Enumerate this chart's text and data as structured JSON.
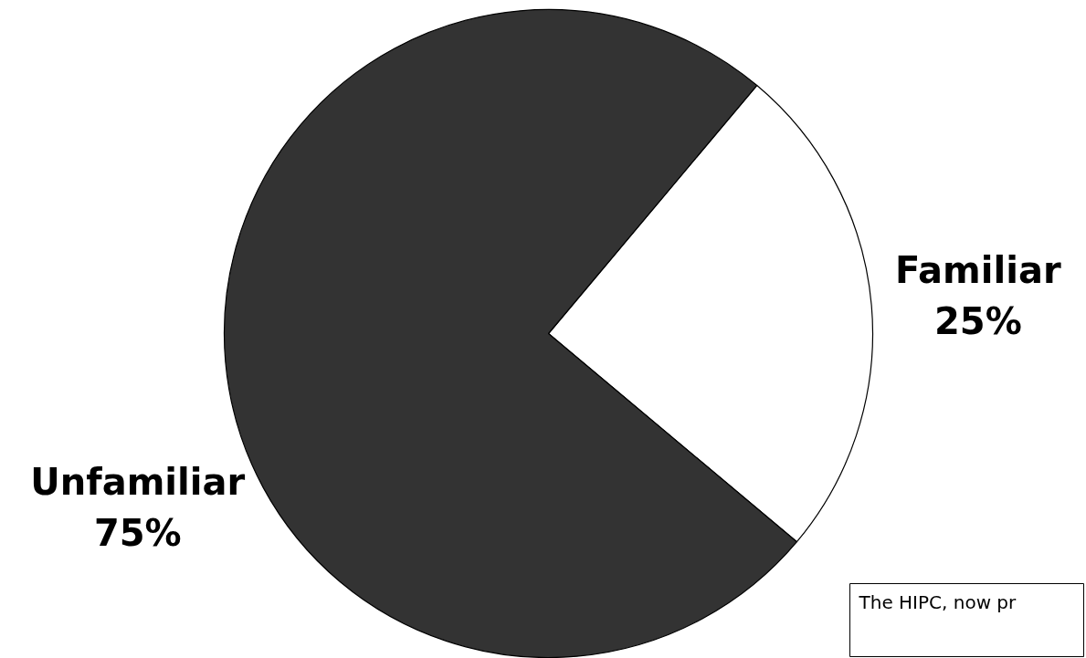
{
  "chart_data": {
    "type": "pie",
    "categories": [
      "Familiar",
      "Unfamiliar"
    ],
    "values": [
      25,
      75
    ],
    "colors": [
      "#ffffff",
      "#333333"
    ],
    "value_labels": [
      "25%",
      "75%"
    ],
    "annotations": [
      "The HIPC, now pr"
    ]
  }
}
